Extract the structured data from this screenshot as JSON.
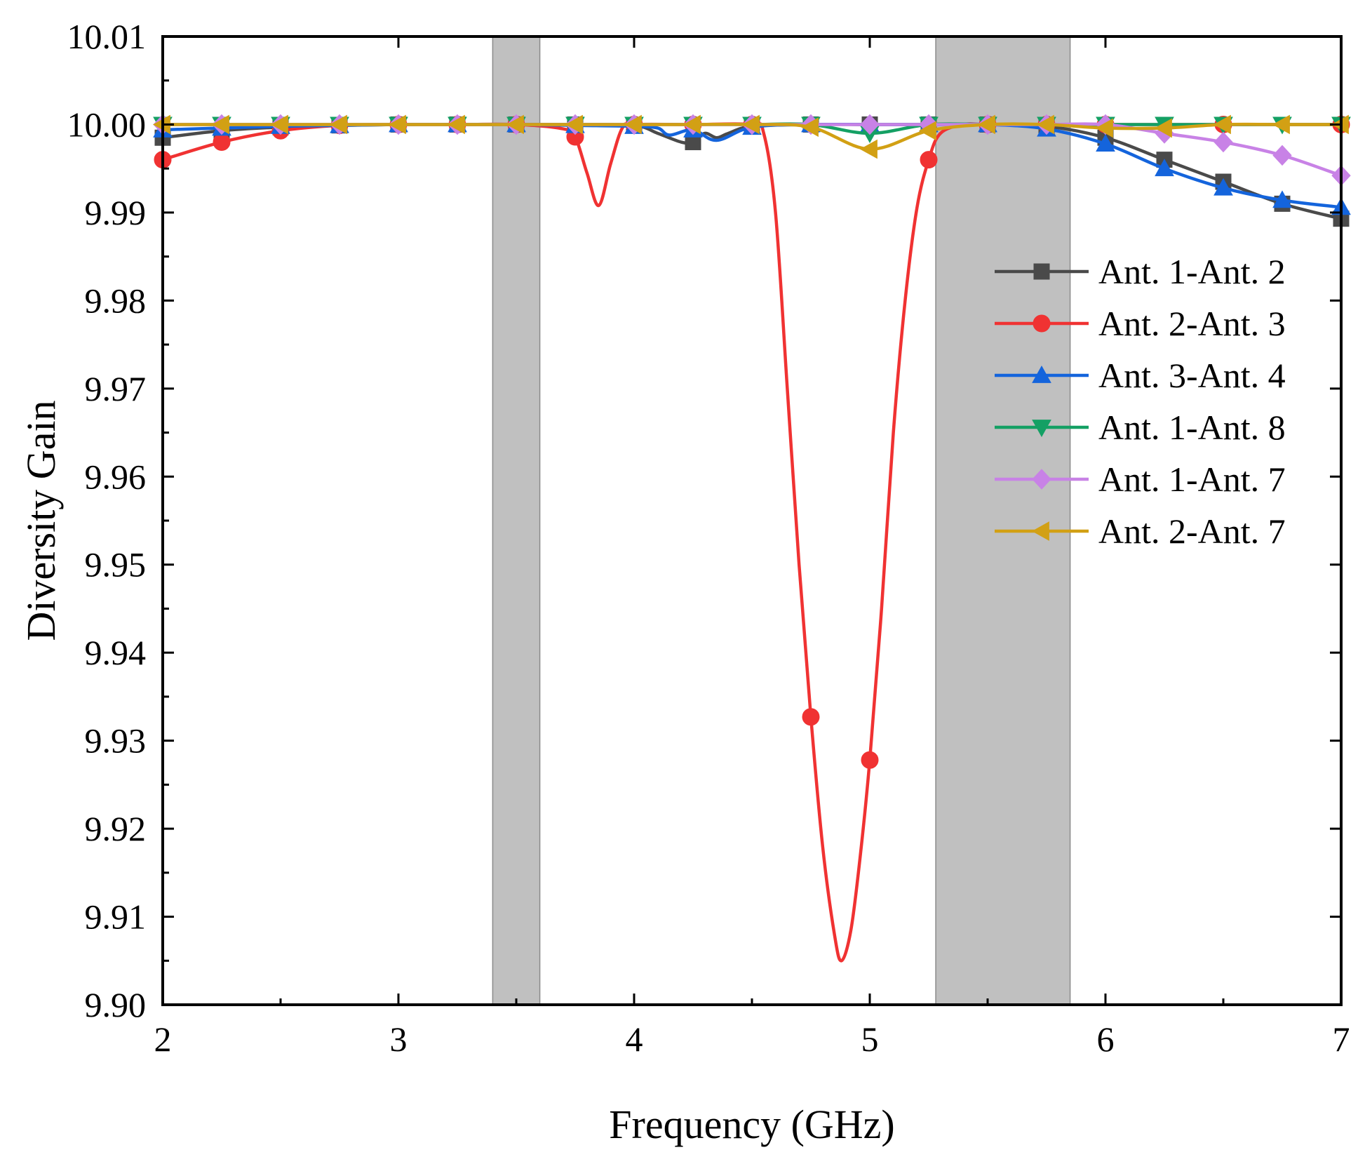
{
  "chart_data": {
    "type": "line",
    "xlabel": "Frequency (GHz)",
    "ylabel": "Diversity Gain",
    "xlim": [
      2,
      7
    ],
    "ylim": [
      9.9,
      10.01
    ],
    "xticks": [
      2,
      3,
      4,
      5,
      6,
      7
    ],
    "xtick_labels": [
      "2",
      "3",
      "4",
      "5",
      "6",
      "7"
    ],
    "yticks": [
      9.9,
      9.91,
      9.92,
      9.93,
      9.94,
      9.95,
      9.96,
      9.97,
      9.98,
      9.99,
      10.0,
      10.01
    ],
    "ytick_labels": [
      "9.90",
      "9.91",
      "9.92",
      "9.93",
      "9.94",
      "9.95",
      "9.96",
      "9.97",
      "9.98",
      "9.99",
      "10.00",
      "10.01"
    ],
    "shaded_bands": [
      [
        3.4,
        3.6
      ],
      [
        5.28,
        5.85
      ]
    ],
    "legend_position": "right",
    "series": [
      {
        "name": "Ant. 1-Ant. 2",
        "color": "#4a4a4a",
        "marker": "square",
        "x": [
          2.0,
          2.25,
          2.5,
          2.75,
          3.0,
          3.25,
          3.5,
          3.75,
          4.0,
          4.1,
          4.2,
          4.25,
          4.3,
          4.35,
          4.4,
          4.5,
          4.75,
          5.0,
          5.25,
          5.5,
          5.75,
          6.0,
          6.25,
          6.5,
          6.75,
          7.0
        ],
        "y": [
          9.9985,
          9.9993,
          9.9997,
          9.9999,
          10.0,
          10.0,
          10.0,
          10.0,
          9.9999,
          9.999,
          9.998,
          9.998,
          9.999,
          9.9985,
          9.999,
          9.9998,
          10.0,
          10.0,
          10.0,
          10.0,
          9.9998,
          9.9985,
          9.996,
          9.9935,
          9.991,
          9.9893
        ]
      },
      {
        "name": "Ant. 2-Ant. 3",
        "color": "#f03232",
        "marker": "circle",
        "x": [
          2.0,
          2.25,
          2.5,
          2.75,
          3.0,
          3.25,
          3.5,
          3.7,
          3.75,
          3.8,
          3.85,
          3.9,
          3.95,
          4.0,
          4.25,
          4.5,
          4.55,
          4.6,
          4.65,
          4.7,
          4.75,
          4.8,
          4.85,
          4.88,
          4.92,
          4.96,
          5.0,
          5.05,
          5.1,
          5.15,
          5.2,
          5.25,
          5.3,
          5.4,
          5.5,
          5.75,
          6.0,
          6.5,
          7.0
        ],
        "y": [
          9.996,
          9.998,
          9.9993,
          9.9999,
          10.0,
          10.0,
          10.0,
          9.9995,
          9.9986,
          9.9945,
          9.9908,
          9.9955,
          9.9996,
          10.0,
          10.0,
          10.0,
          9.999,
          9.99,
          9.97,
          9.95,
          9.9327,
          9.918,
          9.908,
          9.905,
          9.9085,
          9.917,
          9.9278,
          9.945,
          9.965,
          9.98,
          9.9905,
          9.996,
          9.999,
          10.0,
          10.0,
          10.0,
          10.0,
          10.0,
          10.0
        ]
      },
      {
        "name": "Ant. 3-Ant. 4",
        "color": "#1464dc",
        "marker": "triangle-up",
        "x": [
          2.0,
          2.25,
          2.5,
          2.75,
          3.0,
          3.25,
          3.5,
          3.75,
          4.0,
          4.1,
          4.15,
          4.25,
          4.35,
          4.5,
          4.75,
          5.0,
          5.25,
          5.5,
          5.75,
          6.0,
          6.25,
          6.5,
          6.75,
          7.0
        ],
        "y": [
          9.9994,
          9.9996,
          9.9998,
          9.9999,
          10.0,
          10.0,
          10.0,
          9.9999,
          9.9998,
          9.9996,
          9.9988,
          9.9994,
          9.9982,
          9.9997,
          10.0,
          10.0,
          10.0,
          10.0,
          9.9995,
          9.9978,
          9.995,
          9.9928,
          9.9914,
          9.9906
        ]
      },
      {
        "name": "Ant. 1-Ant. 8",
        "color": "#14a064",
        "marker": "triangle-down",
        "x": [
          2.0,
          2.25,
          2.5,
          2.75,
          3.0,
          3.25,
          3.5,
          3.75,
          4.0,
          4.25,
          4.5,
          4.75,
          5.0,
          5.25,
          5.5,
          5.75,
          6.0,
          6.25,
          6.5,
          6.75,
          7.0
        ],
        "y": [
          10.0,
          10.0,
          10.0,
          10.0,
          10.0,
          10.0,
          10.0,
          10.0,
          10.0,
          10.0,
          10.0,
          10.0,
          9.999,
          10.0,
          10.0,
          10.0,
          10.0,
          10.0,
          10.0,
          10.0,
          10.0
        ]
      },
      {
        "name": "Ant. 1-Ant. 7",
        "color": "#c882e6",
        "marker": "diamond",
        "x": [
          2.0,
          2.25,
          2.5,
          2.75,
          3.0,
          3.25,
          3.5,
          3.75,
          4.0,
          4.25,
          4.5,
          4.75,
          5.0,
          5.25,
          5.5,
          5.75,
          6.0,
          6.25,
          6.5,
          6.75,
          7.0
        ],
        "y": [
          10.0,
          10.0,
          10.0,
          10.0,
          10.0,
          10.0,
          10.0,
          10.0,
          10.0,
          10.0,
          10.0,
          10.0,
          10.0,
          10.0,
          10.0,
          10.0,
          10.0,
          9.999,
          9.998,
          9.9965,
          9.9942
        ]
      },
      {
        "name": "Ant. 2-Ant. 7",
        "color": "#d2a014",
        "marker": "triangle-left",
        "x": [
          2.0,
          2.25,
          2.5,
          2.75,
          3.0,
          3.25,
          3.5,
          3.75,
          4.0,
          4.25,
          4.5,
          4.75,
          5.0,
          5.25,
          5.5,
          5.75,
          6.0,
          6.25,
          6.5,
          6.75,
          7.0
        ],
        "y": [
          10.0,
          10.0,
          10.0,
          10.0,
          10.0,
          10.0,
          10.0,
          10.0,
          10.0,
          10.0,
          10.0,
          9.9997,
          9.9972,
          9.9993,
          10.0,
          10.0,
          9.9996,
          9.9996,
          10.0,
          10.0,
          10.0
        ]
      }
    ]
  }
}
